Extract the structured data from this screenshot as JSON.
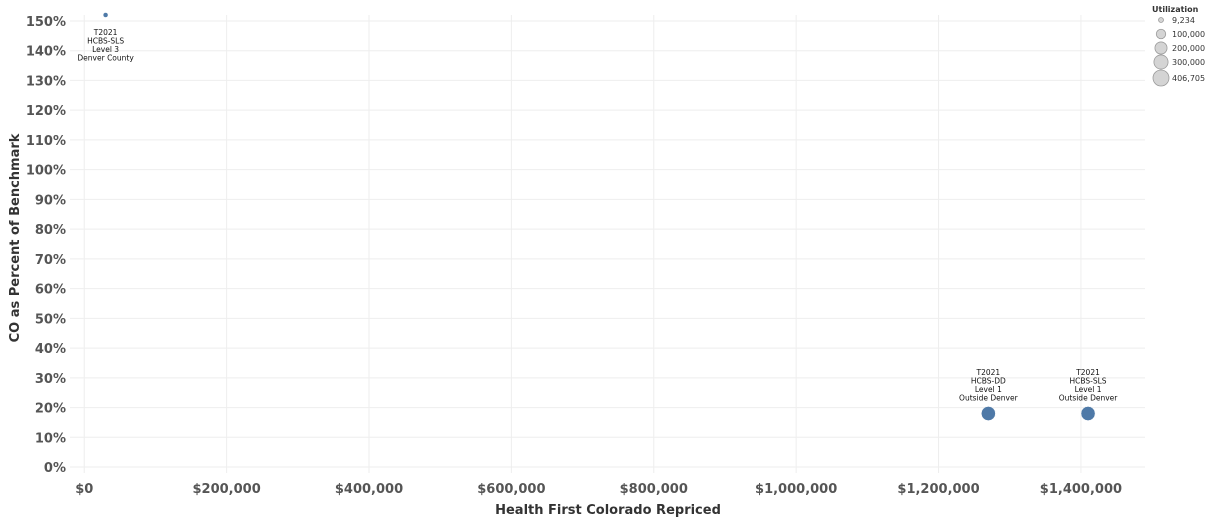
{
  "chart_data": {
    "type": "scatter",
    "xlabel": "Health First Colorado Repriced",
    "ylabel": "CO as Percent of Benchmark",
    "xlim": [
      -20000,
      1490000
    ],
    "ylim": [
      -0.02,
      1.52
    ],
    "x_ticks": [
      0,
      200000,
      400000,
      600000,
      800000,
      1000000,
      1200000,
      1400000
    ],
    "x_tick_labels": [
      "$0",
      "$200,000",
      "$400,000",
      "$600,000",
      "$800,000",
      "$1,000,000",
      "$1,200,000",
      "$1,400,000"
    ],
    "y_ticks": [
      0,
      0.1,
      0.2,
      0.3,
      0.4,
      0.5,
      0.6,
      0.7,
      0.8,
      0.9,
      1.0,
      1.1,
      1.2,
      1.3,
      1.4,
      1.5
    ],
    "y_tick_labels": [
      "0%",
      "10%",
      "20%",
      "30%",
      "40%",
      "50%",
      "60%",
      "70%",
      "80%",
      "90%",
      "100%",
      "110%",
      "120%",
      "130%",
      "140%",
      "150%"
    ],
    "grid": true,
    "points": [
      {
        "x": 1270000,
        "y": 0.18,
        "utilization": 300000,
        "label": [
          "T2021",
          "HCBS-DD",
          "Level 1",
          "Outside Denver"
        ]
      },
      {
        "x": 1410000,
        "y": 0.18,
        "utilization": 300000,
        "label": [
          "T2021",
          "HCBS-SLS",
          "Level 1",
          "Outside Denver"
        ]
      },
      {
        "x": 30000,
        "y": 1.52,
        "utilization": 9234,
        "label": [
          "T2021",
          "HCBS-SLS",
          "Level 3",
          "Denver County"
        ]
      }
    ],
    "legend": {
      "title": "Utilization",
      "placement": "top-right",
      "entries": [
        "9,234",
        "100,000",
        "200,000",
        "300,000",
        "406,705"
      ],
      "values": [
        9234,
        100000,
        200000,
        300000,
        406705
      ]
    },
    "colors": {
      "mark": "#4e79a7",
      "legend_fill": "#d4d4d4",
      "legend_stroke": "#9b9b9b"
    }
  }
}
